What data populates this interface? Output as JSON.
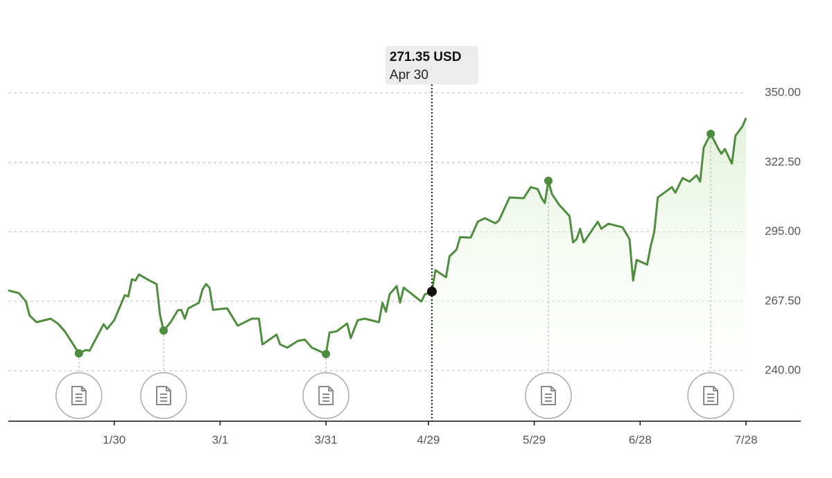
{
  "chart_data": {
    "type": "line",
    "x": [
      "12/31",
      "1/3",
      "1/5",
      "1/6",
      "1/8",
      "1/12",
      "1/14",
      "1/16",
      "1/20",
      "1/22",
      "1/23",
      "1/27",
      "1/28",
      "1/30",
      "2/2",
      "2/3",
      "2/4",
      "2/5",
      "2/6",
      "2/9",
      "2/11",
      "2/12",
      "2/13",
      "2/15",
      "2/17",
      "2/18",
      "2/19",
      "2/20",
      "2/23",
      "2/24",
      "2/25",
      "2/26",
      "2/27",
      "3/3",
      "3/6",
      "3/10",
      "3/12",
      "3/13",
      "3/17",
      "3/18",
      "3/20",
      "3/23",
      "3/25",
      "3/27",
      "3/31",
      "4/1",
      "4/3",
      "4/6",
      "4/7",
      "4/9",
      "4/11",
      "4/15",
      "4/16",
      "4/17",
      "4/18",
      "4/20",
      "4/21",
      "4/22",
      "4/25",
      "4/27",
      "4/28",
      "4/30",
      "5/1",
      "5/4",
      "5/5",
      "5/6",
      "5/7",
      "5/8",
      "5/11",
      "5/13",
      "5/15",
      "5/18",
      "5/19",
      "5/22",
      "5/26",
      "5/28",
      "5/30",
      "5/31",
      "6/1",
      "6/2",
      "6/3",
      "6/5",
      "6/8",
      "6/9",
      "6/10",
      "6/11",
      "6/12",
      "6/16",
      "6/17",
      "6/19",
      "6/23",
      "6/25",
      "6/26",
      "6/27",
      "6/30",
      "7/1",
      "7/2",
      "7/3",
      "7/7",
      "7/8",
      "7/10",
      "7/12",
      "7/14",
      "7/15",
      "7/16",
      "7/18",
      "7/20",
      "7/21",
      "7/22",
      "7/24",
      "7/25",
      "7/27",
      "7/28"
    ],
    "series": [
      {
        "color": "#4e8c3e",
        "values": [
          271.8,
          270.7,
          267.4,
          261.9,
          259.2,
          260.6,
          258.7,
          255.6,
          246.9,
          248.2,
          247.9,
          258.4,
          256.5,
          260.0,
          269.9,
          269.4,
          276.2,
          275.7,
          278.1,
          275.7,
          274.3,
          261.9,
          255.9,
          259.2,
          263.9,
          264.1,
          260.6,
          264.7,
          266.9,
          272.1,
          274.3,
          272.9,
          264.1,
          264.7,
          257.8,
          260.6,
          260.6,
          250.4,
          254.3,
          250.4,
          249.1,
          251.8,
          252.3,
          249.1,
          246.6,
          255.1,
          255.6,
          258.7,
          252.9,
          260.0,
          260.6,
          259.2,
          266.9,
          263.3,
          270.2,
          273.5,
          266.9,
          272.9,
          269.6,
          267.4,
          270.2,
          271.35,
          279.8,
          277.0,
          285.3,
          286.6,
          288.0,
          292.9,
          292.7,
          299.0,
          300.4,
          298.4,
          299.5,
          308.6,
          308.3,
          312.7,
          311.9,
          308.6,
          306.4,
          315.2,
          310.0,
          305.8,
          301.2,
          290.8,
          292.1,
          296.2,
          290.8,
          299.0,
          296.2,
          298.2,
          296.8,
          292.1,
          275.7,
          283.9,
          282.0,
          289.4,
          294.9,
          308.6,
          312.7,
          310.5,
          316.3,
          314.9,
          317.4,
          314.9,
          328.3,
          333.8,
          328.3,
          325.9,
          327.8,
          322.0,
          333.0,
          336.8,
          340.1
        ]
      }
    ],
    "xlim": [
      "12/31",
      "7/28"
    ],
    "xticks": [
      "1/30",
      "3/1",
      "3/31",
      "4/29",
      "5/29",
      "6/28",
      "7/28"
    ],
    "ylim": [
      220,
      386.8
    ],
    "yticks": [
      {
        "value": 240,
        "label": "240.00"
      },
      {
        "value": 267.5,
        "label": "267.50"
      },
      {
        "value": 295,
        "label": "295.00"
      },
      {
        "value": 322.5,
        "label": "322.50"
      },
      {
        "value": 350,
        "label": "350.00"
      }
    ],
    "grid": true,
    "events": [
      {
        "x": "1/20",
        "value": 246.9
      },
      {
        "x": "2/13",
        "value": 255.9
      },
      {
        "x": "3/31",
        "value": 246.6
      },
      {
        "x": "6/2",
        "value": 315.2
      },
      {
        "x": "7/18",
        "value": 333.8
      }
    ],
    "tooltip": {
      "x": "4/30",
      "value": 271.35,
      "label": "271.35 USD",
      "date": "Apr 30"
    }
  }
}
